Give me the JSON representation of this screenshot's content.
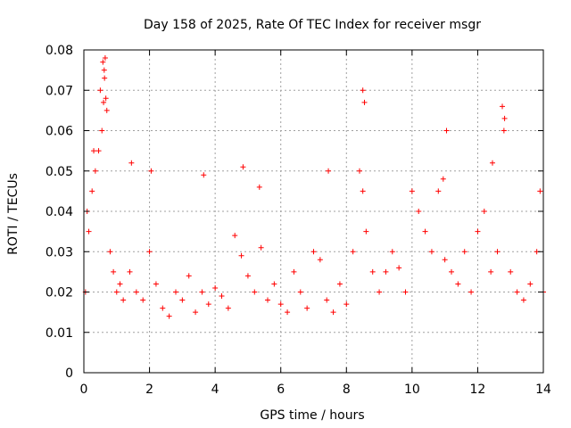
{
  "chart_data": {
    "type": "scatter",
    "title": "Day 158 of 2025, Rate Of TEC Index for receiver msgr",
    "xlabel": "GPS time / hours",
    "ylabel": "ROTI / TECUs",
    "xlim": [
      0,
      14
    ],
    "ylim": [
      0,
      0.08
    ],
    "x_ticks": [
      0,
      2,
      4,
      6,
      8,
      10,
      12,
      14
    ],
    "x_tick_labels": [
      "0",
      "2",
      "4",
      "6",
      "8",
      "10",
      "12",
      "14"
    ],
    "y_ticks": [
      0,
      0.01,
      0.02,
      0.03,
      0.04,
      0.05,
      0.06,
      0.07,
      0.08
    ],
    "y_tick_labels": [
      "0",
      "0.01",
      "0.02",
      "0.03",
      "0.04",
      "0.05",
      "0.06",
      "0.07",
      "0.08"
    ],
    "grid": true,
    "marker": "+",
    "color": "#ff0000",
    "series": [
      {
        "name": "ROTI",
        "x": [
          0.05,
          0.15,
          0.25,
          0.35,
          0.45,
          0.55,
          0.6,
          0.62,
          0.65,
          0.7,
          0.8,
          0.9,
          1.0,
          1.1,
          1.2,
          1.4,
          1.6,
          1.8,
          2.0,
          2.2,
          2.4,
          2.6,
          2.8,
          3.0,
          3.2,
          3.4,
          3.6,
          3.8,
          4.0,
          4.2,
          4.4,
          4.6,
          4.8,
          5.0,
          5.2,
          5.4,
          5.6,
          5.8,
          6.0,
          6.2,
          6.4,
          6.6,
          6.8,
          7.0,
          7.2,
          7.4,
          7.6,
          7.8,
          8.0,
          8.2,
          8.4,
          8.5,
          8.6,
          8.8,
          9.0,
          9.2,
          9.4,
          9.6,
          9.8,
          10.0,
          10.2,
          10.4,
          10.6,
          10.8,
          11.0,
          11.2,
          11.4,
          11.6,
          11.8,
          12.0,
          12.2,
          12.4,
          12.6,
          12.8,
          13.0,
          13.2,
          13.4,
          13.6,
          13.8,
          14.0,
          0.1,
          0.3,
          0.5,
          0.58,
          0.63,
          0.67,
          1.45,
          2.05,
          3.65,
          4.85,
          5.35,
          7.45,
          8.5,
          8.55,
          10.95,
          11.05,
          12.45,
          12.75,
          12.82,
          13.9
        ],
        "y": [
          0.02,
          0.035,
          0.045,
          0.05,
          0.055,
          0.06,
          0.067,
          0.075,
          0.078,
          0.065,
          0.03,
          0.025,
          0.02,
          0.022,
          0.018,
          0.025,
          0.02,
          0.018,
          0.03,
          0.022,
          0.016,
          0.014,
          0.02,
          0.018,
          0.024,
          0.015,
          0.02,
          0.017,
          0.021,
          0.019,
          0.016,
          0.034,
          0.029,
          0.024,
          0.02,
          0.031,
          0.018,
          0.022,
          0.017,
          0.015,
          0.025,
          0.02,
          0.016,
          0.03,
          0.028,
          0.018,
          0.015,
          0.022,
          0.017,
          0.03,
          0.05,
          0.045,
          0.035,
          0.025,
          0.02,
          0.025,
          0.03,
          0.026,
          0.02,
          0.045,
          0.04,
          0.035,
          0.03,
          0.045,
          0.028,
          0.025,
          0.022,
          0.03,
          0.02,
          0.035,
          0.04,
          0.025,
          0.03,
          0.06,
          0.025,
          0.02,
          0.018,
          0.022,
          0.03,
          0.02,
          0.04,
          0.055,
          0.07,
          0.077,
          0.073,
          0.068,
          0.052,
          0.05,
          0.049,
          0.051,
          0.046,
          0.05,
          0.07,
          0.067,
          0.048,
          0.06,
          0.052,
          0.066,
          0.063,
          0.045
        ]
      }
    ]
  }
}
